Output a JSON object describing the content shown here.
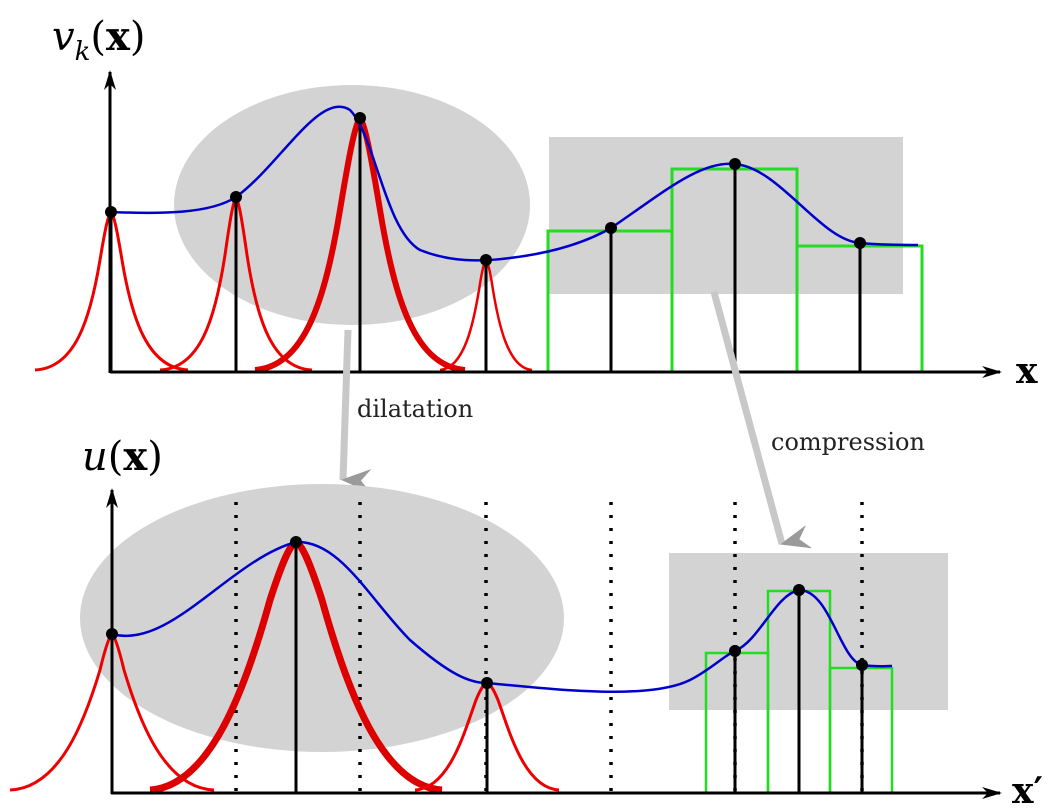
{
  "top": {
    "ylabel": "v_k(x)",
    "ylabel_sym": "v",
    "ylabel_sub": "k",
    "ylabel_arg": "x",
    "xlabel": "x"
  },
  "bottom": {
    "ylabel": "u(x)",
    "ylabel_sym": "u",
    "ylabel_arg": "x",
    "xlabel": "x′"
  },
  "annotations": {
    "dilatation": "dilatation",
    "compression": "compression"
  },
  "colors": {
    "curve": "#0000cc",
    "kernel": "#ee0000",
    "box": "#22dd22",
    "region": "#d3d3d3",
    "arrow": "#c8c8c8"
  }
}
